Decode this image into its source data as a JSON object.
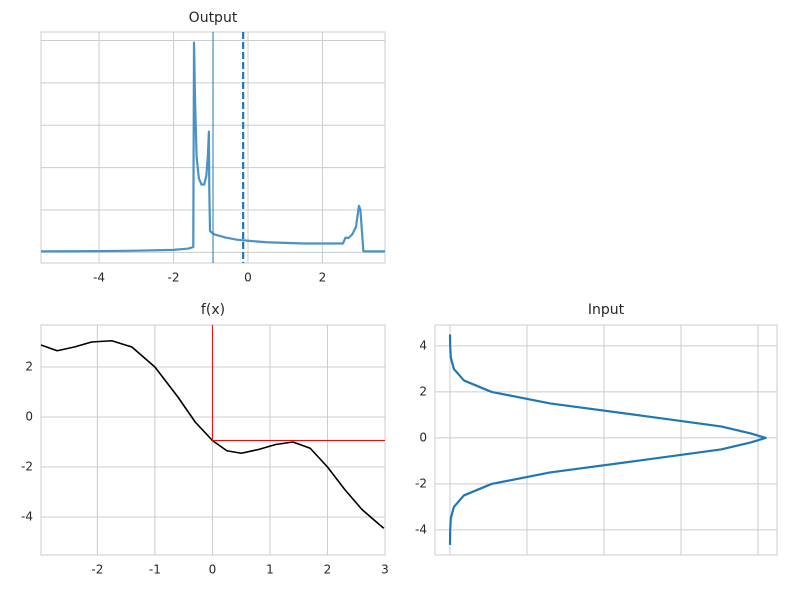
{
  "chart_data": [
    {
      "type": "line",
      "title": "Output",
      "x": [
        -5.56,
        -4,
        -3,
        -2,
        -1.6,
        -1.47,
        -1.45,
        -1.42,
        -1.38,
        -1.32,
        -1.25,
        -1.18,
        -1.12,
        -1.08,
        -1.05,
        -1.04,
        -1.02,
        -0.9,
        -0.6,
        -0.3,
        0,
        0.5,
        1,
        1.5,
        2,
        2.55,
        2.62,
        2.7,
        2.8,
        2.9,
        2.98,
        3.02,
        3.06,
        3.1,
        3.68
      ],
      "values": [
        0.005,
        0.006,
        0.008,
        0.012,
        0.018,
        0.025,
        0.99,
        0.7,
        0.45,
        0.35,
        0.32,
        0.32,
        0.36,
        0.45,
        0.57,
        0.3,
        0.1,
        0.085,
        0.07,
        0.06,
        0.055,
        0.048,
        0.045,
        0.042,
        0.042,
        0.042,
        0.07,
        0.068,
        0.085,
        0.12,
        0.22,
        0.2,
        0.1,
        0.005,
        0.005
      ],
      "color": "#4b92c3",
      "xlim": [
        -5.56,
        3.68
      ],
      "ylim": [
        -0.05,
        1.04
      ],
      "xticks": [
        -4,
        -2,
        0,
        2
      ],
      "yticks": [
        0,
        0.2,
        0.4,
        0.6,
        0.8,
        1.0
      ],
      "show_ytick_labels": false,
      "grid": true,
      "vlines": [
        {
          "x": -0.94,
          "style": "solid",
          "color": "#1f77b4"
        },
        {
          "x": -0.13,
          "style": "dashed",
          "color": "#1f77b4"
        }
      ]
    },
    {
      "type": "line",
      "title": "f(x)",
      "x": [
        -2.98,
        -2.7,
        -2.4,
        -2.1,
        -1.75,
        -1.4,
        -1.0,
        -0.6,
        -0.3,
        0,
        0.25,
        0.5,
        0.8,
        1.1,
        1.4,
        1.7,
        2.0,
        2.3,
        2.6,
        2.9,
        2.98
      ],
      "values": [
        2.88,
        2.65,
        2.8,
        3.0,
        3.05,
        2.8,
        2.0,
        0.8,
        -0.2,
        -0.94,
        -1.35,
        -1.45,
        -1.3,
        -1.1,
        -1.0,
        -1.25,
        -2.0,
        -2.9,
        -3.7,
        -4.3,
        -4.45
      ],
      "color": "#000000",
      "xlim": [
        -2.98,
        3
      ],
      "ylim": [
        -5.52,
        3.68
      ],
      "xticks": [
        -2,
        -1,
        0,
        1,
        2,
        3
      ],
      "yticks": [
        -4,
        -2,
        0,
        2
      ],
      "grid": true,
      "crosshair": {
        "x": 0,
        "y": -0.94,
        "color": "#ff0000"
      }
    },
    {
      "type": "line",
      "title": "Input",
      "orientation": "horizontal",
      "y": [
        -4.65,
        -4,
        -3.5,
        -3,
        -2.5,
        -2,
        -1.5,
        -1,
        -0.5,
        -0.2,
        0,
        0.2,
        0.5,
        1,
        1.5,
        2,
        2.5,
        3,
        3.5,
        4,
        4.5
      ],
      "values": [
        0,
        0.0002,
        0.001,
        0.005,
        0.018,
        0.054,
        0.13,
        0.242,
        0.352,
        0.39,
        0.41,
        0.39,
        0.352,
        0.242,
        0.13,
        0.054,
        0.018,
        0.005,
        0.001,
        0.0002,
        0
      ],
      "color": "#1f77b4",
      "xlim": [
        -0.0195,
        0.4247
      ],
      "ylim": [
        -5.09,
        4.91
      ],
      "xticks": [
        0,
        0.1,
        0.2,
        0.3,
        0.4
      ],
      "yticks": [
        -4,
        -2,
        0,
        2,
        4
      ],
      "show_xtick_labels": false,
      "grid": true
    }
  ]
}
